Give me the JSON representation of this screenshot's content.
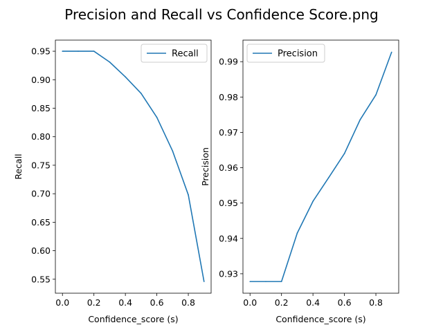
{
  "figure": {
    "title": "Precision and Recall vs Confidence Score.png"
  },
  "chart_data": [
    {
      "type": "line",
      "xlabel": "Confidence_score (s)",
      "ylabel": "Recall",
      "xlim": [
        -0.045,
        0.945
      ],
      "ylim": [
        0.5255,
        0.9695
      ],
      "xticks": [
        0.0,
        0.2,
        0.4,
        0.6,
        0.8
      ],
      "xtick_labels": [
        "0.0",
        "0.2",
        "0.4",
        "0.6",
        "0.8"
      ],
      "yticks": [
        0.55,
        0.6,
        0.65,
        0.7,
        0.75,
        0.8,
        0.85,
        0.9,
        0.95
      ],
      "ytick_labels": [
        "0.55",
        "0.60",
        "0.65",
        "0.70",
        "0.75",
        "0.80",
        "0.85",
        "0.90",
        "0.95"
      ],
      "legend_position": "top-right",
      "series": [
        {
          "name": "Recall",
          "color": "#1f77b4",
          "x": [
            0.0,
            0.1,
            0.2,
            0.3,
            0.4,
            0.5,
            0.6,
            0.7,
            0.8,
            0.9
          ],
          "y": [
            0.95,
            0.95,
            0.95,
            0.931,
            0.905,
            0.876,
            0.834,
            0.775,
            0.698,
            0.546
          ]
        }
      ]
    },
    {
      "type": "line",
      "xlabel": "Confidence_score (s)",
      "ylabel": "Precision",
      "xlim": [
        -0.045,
        0.945
      ],
      "ylim": [
        0.9245,
        0.9961
      ],
      "xticks": [
        0.0,
        0.2,
        0.4,
        0.6,
        0.8
      ],
      "xtick_labels": [
        "0.0",
        "0.2",
        "0.4",
        "0.6",
        "0.8"
      ],
      "yticks": [
        0.93,
        0.94,
        0.95,
        0.96,
        0.97,
        0.98,
        0.99
      ],
      "ytick_labels": [
        "0.93",
        "0.94",
        "0.95",
        "0.96",
        "0.97",
        "0.98",
        "0.99"
      ],
      "legend_position": "top-left",
      "series": [
        {
          "name": "Precision",
          "color": "#1f77b4",
          "x": [
            0.0,
            0.1,
            0.2,
            0.3,
            0.4,
            0.5,
            0.6,
            0.7,
            0.8,
            0.9
          ],
          "y": [
            0.9278,
            0.9278,
            0.9278,
            0.9415,
            0.9505,
            0.9572,
            0.964,
            0.9736,
            0.9806,
            0.9927
          ]
        }
      ]
    }
  ]
}
